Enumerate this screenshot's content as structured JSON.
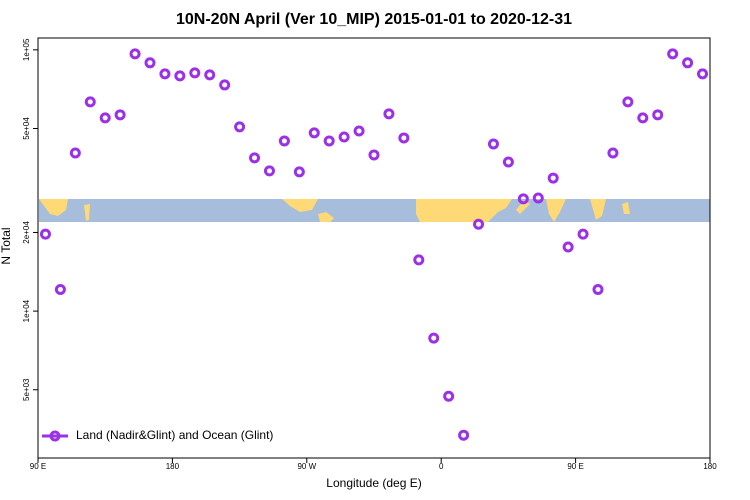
{
  "chart_data": {
    "type": "scatter",
    "title": "10N-20N April (Ver 10_MIP)   2015-01-01 to 2020-12-31",
    "x_label": "Longitude (deg E)",
    "y_label": "N Total",
    "log_y": true,
    "legend_position": "bottom-left",
    "xlim": [
      90,
      540
    ],
    "xticks": [
      {
        "value": 90,
        "label": "90 E"
      },
      180,
      {
        "value": 270,
        "label": "90 W"
      },
      {
        "value": 360,
        "label": "0"
      },
      {
        "value": 450,
        "label": "90 E"
      },
      {
        "value": 540,
        "label": "180"
      }
    ],
    "ylim": [
      2740,
      111000
    ],
    "yticks": [
      {
        "value": 100000,
        "label": "1e+05"
      },
      {
        "value": 50000,
        "label": "5e+04"
      },
      {
        "value": 20000,
        "label": "2e+04"
      },
      {
        "value": 10000,
        "label": "1e+04"
      },
      {
        "value": 5000,
        "label": "5e+03"
      }
    ],
    "series": [
      {
        "name": "Land (Nadir&Glint) and Ocean (Glint)",
        "color": "#9b30e8",
        "x": [
          95,
          105,
          115,
          125,
          135,
          145,
          155,
          165,
          175,
          185,
          195,
          205,
          215,
          225,
          235,
          245,
          255,
          265,
          275,
          285,
          295,
          305,
          315,
          325,
          335,
          345,
          355,
          365,
          375,
          385,
          395,
          405,
          415,
          425,
          435,
          445,
          455,
          465,
          475,
          485,
          495,
          505,
          515,
          525,
          535
        ],
        "values": [
          19700,
          12100,
          40300,
          63200,
          54900,
          56400,
          96500,
          89200,
          80900,
          79500,
          81600,
          80200,
          73400,
          50700,
          38600,
          34400,
          44800,
          34100,
          48100,
          44800,
          46400,
          48900,
          39600,
          56900,
          46000,
          15700,
          7880,
          4720,
          3350,
          21500,
          43600,
          37200,
          26900,
          27100,
          32300,
          17600,
          19700,
          12100,
          40300,
          63200,
          54900,
          56400,
          96500,
          89200,
          80900
        ]
      }
    ]
  }
}
